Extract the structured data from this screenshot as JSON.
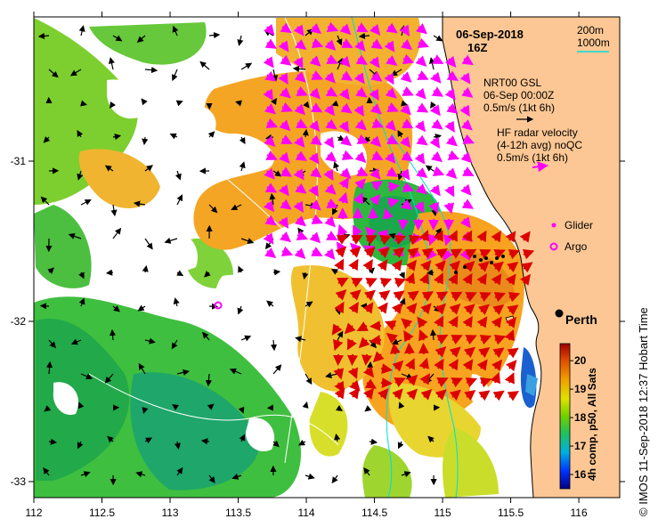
{
  "map": {
    "date": "06-Sep-2018",
    "time": "16Z",
    "city": "Perth",
    "depth_contours": [
      "200m",
      "1000m"
    ],
    "velocity_legend": {
      "title": "NRT00 GSL",
      "date": "06-Sep 00:00Z",
      "scale": "0.5m/s (1kt 6h)"
    },
    "radar_legend": {
      "line1": "HF radar velocity",
      "line2": "(4-12h avg) noQC",
      "scale": "0.5m/s (1kt 6h)"
    },
    "glider_label": "Glider",
    "argo_label": "Argo",
    "credit": "© IMOS 11-Sep-2018 12:37 Hobart Time",
    "colors": {
      "land": "#fcc794",
      "radar_arrows": "#ff00ff",
      "current_arrows": "#dd0000",
      "contour_200": "#00dddd",
      "contour_1000": "#ffffff"
    }
  },
  "chart_data": {
    "type": "heatmap",
    "x_ticks": [
      "112",
      "112.5",
      "113",
      "113.5",
      "114",
      "114.5",
      "115",
      "115.5",
      "116"
    ],
    "y_ticks": [
      "-31",
      "-32",
      "-33"
    ],
    "xlim": [
      112,
      116.3
    ],
    "ylim": [
      -33.1,
      -30.1
    ],
    "colorbar": {
      "label": "4h comp, p50, All Sats",
      "ticks": [
        "20",
        "19",
        "18",
        "17",
        "16"
      ],
      "range": [
        15.5,
        20.6
      ]
    },
    "perth": {
      "lon": 115.86,
      "lat": -31.95
    },
    "argo": {
      "lon": 113.35,
      "lat": -31.89
    }
  }
}
